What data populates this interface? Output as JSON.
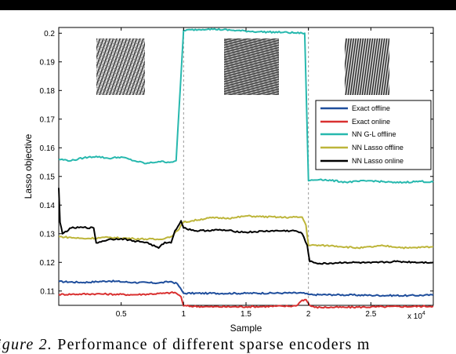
{
  "caption": {
    "label": "igure 2.",
    "text": "Performance of different sparse encoders m"
  },
  "colors": {
    "exact_offline": "#1f4e9c",
    "exact_online": "#d93030",
    "nn_gl_offline": "#27b8ae",
    "nn_lasso_offline": "#bdb53a",
    "nn_lasso_online": "#000000",
    "divider": "#999999"
  },
  "chart_data": {
    "type": "line",
    "title": "",
    "xlabel": "Sample",
    "ylabel": "Lasso objective",
    "x_exponent_label": "x 10",
    "x_exponent_power": "4",
    "xlim": [
      0,
      30000
    ],
    "ylim": [
      0.105,
      0.202
    ],
    "x_ticks": [
      5000,
      10000,
      15000,
      20000,
      25000
    ],
    "x_tick_labels": [
      "0.5",
      "1",
      "1.5",
      "2",
      "2.5"
    ],
    "y_ticks": [
      0.11,
      0.12,
      0.13,
      0.14,
      0.15,
      0.16,
      0.17,
      0.18,
      0.19,
      0.2
    ],
    "y_tick_labels": [
      "0.11",
      "0.12",
      "0.13",
      "0.14",
      "0.15",
      "0.16",
      "0.17",
      "0.18",
      "0.19",
      "0.2"
    ],
    "dividers_x": [
      10000,
      20000
    ],
    "legend_position": "right",
    "grid": false,
    "texture_images": [
      "texture-patch-1",
      "texture-patch-2",
      "texture-patch-3"
    ],
    "series": [
      {
        "name": "Exact offline",
        "color": "#1f4e9c",
        "x": [
          0,
          2000,
          4000,
          6000,
          8000,
          9000,
          9500,
          10000,
          12000,
          15000,
          18000,
          19500,
          20000,
          20500,
          22000,
          25000,
          28000,
          30000
        ],
        "y": [
          0.1133,
          0.113,
          0.1135,
          0.113,
          0.1128,
          0.1133,
          0.1125,
          0.1092,
          0.1092,
          0.1092,
          0.1093,
          0.1093,
          0.1088,
          0.1087,
          0.1087,
          0.1085,
          0.1084,
          0.1086
        ]
      },
      {
        "name": "Exact online",
        "color": "#d93030",
        "x": [
          0,
          3000,
          6000,
          8500,
          9300,
          9800,
          10000,
          12000,
          15000,
          18000,
          19000,
          19500,
          19800,
          20100,
          20500,
          23000,
          26000,
          30000
        ],
        "y": [
          0.1088,
          0.109,
          0.1087,
          0.1092,
          0.1095,
          0.108,
          0.1048,
          0.1045,
          0.1045,
          0.1047,
          0.1048,
          0.1068,
          0.107,
          0.105,
          0.1043,
          0.1043,
          0.1045,
          0.1047
        ]
      },
      {
        "name": "NN G-L offline",
        "color": "#27b8ae",
        "x": [
          0,
          1000,
          2000,
          3000,
          4000,
          5000,
          6000,
          7000,
          8000,
          9000,
          9400,
          10000,
          12000,
          14000,
          16000,
          18000,
          19500,
          19700,
          20000,
          21000,
          23000,
          25000,
          27000,
          29000,
          30000
        ],
        "y": [
          0.156,
          0.1555,
          0.1565,
          0.157,
          0.1563,
          0.1568,
          0.1555,
          0.1545,
          0.1552,
          0.155,
          0.1555,
          0.201,
          0.2015,
          0.201,
          0.2005,
          0.2003,
          0.2,
          0.2,
          0.1485,
          0.149,
          0.148,
          0.1485,
          0.1478,
          0.1483,
          0.148
        ]
      },
      {
        "name": "NN Lasso offline",
        "color": "#bdb53a",
        "x": [
          0,
          2000,
          4000,
          6000,
          8000,
          9000,
          9500,
          10000,
          12000,
          14000,
          15000,
          16000,
          18000,
          19500,
          19800,
          20000,
          22000,
          24000,
          26000,
          28000,
          30000
        ],
        "y": [
          0.129,
          0.1283,
          0.1287,
          0.1283,
          0.128,
          0.129,
          0.131,
          0.134,
          0.1355,
          0.1355,
          0.1362,
          0.136,
          0.1357,
          0.1358,
          0.133,
          0.126,
          0.1258,
          0.125,
          0.1258,
          0.125,
          0.1255
        ]
      },
      {
        "name": "NN Lasso online",
        "color": "#000000",
        "x": [
          0,
          100,
          300,
          1000,
          2000,
          2800,
          3000,
          4000,
          5000,
          6000,
          7000,
          8000,
          8500,
          9000,
          9300,
          9800,
          10000,
          11000,
          13000,
          15000,
          17000,
          19000,
          19500,
          19900,
          20100,
          21000,
          23000,
          25000,
          27000,
          29000,
          30000
        ],
        "y": [
          0.146,
          0.134,
          0.13,
          0.132,
          0.1322,
          0.132,
          0.1268,
          0.128,
          0.1283,
          0.1275,
          0.127,
          0.125,
          0.127,
          0.1268,
          0.131,
          0.1345,
          0.132,
          0.131,
          0.1313,
          0.1305,
          0.131,
          0.131,
          0.13,
          0.126,
          0.1203,
          0.1195,
          0.12,
          0.1198,
          0.1203,
          0.12,
          0.12
        ]
      }
    ]
  }
}
